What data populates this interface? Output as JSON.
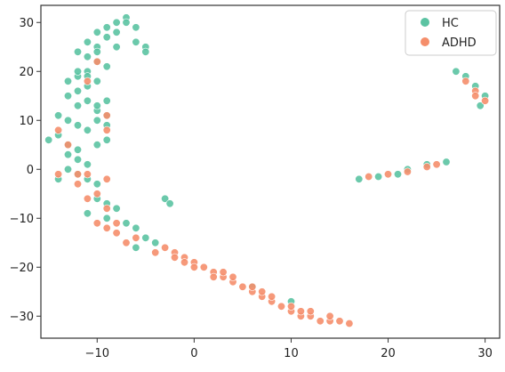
{
  "chart_data": {
    "type": "scatter",
    "x_ticks": [
      -10,
      0,
      10,
      20,
      30
    ],
    "y_ticks": [
      30,
      20,
      10,
      0,
      -10,
      -20,
      -30
    ],
    "x_tick_labels": [
      "−10",
      "0",
      "10",
      "20",
      "30"
    ],
    "y_tick_labels": [
      "30",
      "20",
      "10",
      "0",
      "−10",
      "−20",
      "−30"
    ],
    "xlim": [
      -15.8,
      31.5
    ],
    "ylim": [
      -34.5,
      33.5
    ],
    "grid": false,
    "legend": {
      "position": "top-right"
    },
    "series": [
      {
        "name": "HC",
        "color": "#5bc3a2",
        "points": [
          [
            -7,
            31
          ],
          [
            -8,
            30
          ],
          [
            -9,
            29
          ],
          [
            -10,
            28
          ],
          [
            -8,
            28
          ],
          [
            -7,
            30
          ],
          [
            -6,
            29
          ],
          [
            -9,
            27
          ],
          [
            -11,
            26
          ],
          [
            -10,
            25
          ],
          [
            -12,
            24
          ],
          [
            -11,
            23
          ],
          [
            -10,
            22
          ],
          [
            -9,
            21
          ],
          [
            -11,
            20
          ],
          [
            -12,
            19
          ],
          [
            -13,
            18
          ],
          [
            -10,
            18
          ],
          [
            -11,
            17
          ],
          [
            -12,
            16
          ],
          [
            -13,
            15
          ],
          [
            -11,
            14
          ],
          [
            -12,
            13
          ],
          [
            -10,
            12
          ],
          [
            -9,
            11
          ],
          [
            -14,
            11
          ],
          [
            -13,
            10
          ],
          [
            -12,
            9
          ],
          [
            -11,
            8
          ],
          [
            -14,
            7
          ],
          [
            -15,
            6
          ],
          [
            -13,
            5
          ],
          [
            -12,
            4
          ],
          [
            -10,
            5
          ],
          [
            -9,
            6
          ],
          [
            -13,
            3
          ],
          [
            -12,
            2
          ],
          [
            -11,
            1
          ],
          [
            -13,
            0
          ],
          [
            -12,
            -1
          ],
          [
            -11,
            -2
          ],
          [
            -10,
            -3
          ],
          [
            -14,
            -2
          ],
          [
            -10,
            -6
          ],
          [
            -9,
            -7
          ],
          [
            -8,
            -8
          ],
          [
            -11,
            -9
          ],
          [
            -9,
            -10
          ],
          [
            -7,
            -11
          ],
          [
            -6,
            -12
          ],
          [
            -5,
            -14
          ],
          [
            -4,
            -15
          ],
          [
            -6,
            -16
          ],
          [
            -5,
            25
          ],
          [
            -5,
            24
          ],
          [
            -6,
            26
          ],
          [
            -3,
            -6
          ],
          [
            -2.5,
            -7
          ],
          [
            -9,
            14
          ],
          [
            -10,
            10
          ],
          [
            -11,
            19
          ],
          [
            -10,
            24
          ],
          [
            -8,
            25
          ],
          [
            -9,
            9
          ],
          [
            -12,
            20
          ],
          [
            -10,
            13
          ],
          [
            6,
            -24
          ],
          [
            10,
            -27
          ],
          [
            17,
            -2
          ],
          [
            19,
            -1.5
          ],
          [
            21,
            -1
          ],
          [
            22,
            0
          ],
          [
            24,
            1
          ],
          [
            26,
            1.5
          ],
          [
            27,
            20
          ],
          [
            28,
            19
          ],
          [
            29,
            17
          ],
          [
            30,
            15
          ],
          [
            29.5,
            13
          ]
        ]
      },
      {
        "name": "ADHD",
        "color": "#f58e6b",
        "points": [
          [
            -10,
            22
          ],
          [
            -11,
            18
          ],
          [
            -14,
            8
          ],
          [
            -13,
            5
          ],
          [
            -9,
            11
          ],
          [
            -9,
            8
          ],
          [
            -14,
            -1
          ],
          [
            -12,
            -1
          ],
          [
            -11,
            -1
          ],
          [
            -9,
            -2
          ],
          [
            -10,
            -5
          ],
          [
            -9,
            -8
          ],
          [
            -10,
            -11
          ],
          [
            -9,
            -12
          ],
          [
            -8,
            -13
          ],
          [
            -6,
            -14
          ],
          [
            -3,
            -16
          ],
          [
            -2,
            -17
          ],
          [
            -1,
            -18
          ],
          [
            0,
            -19
          ],
          [
            1,
            -20
          ],
          [
            2,
            -21
          ],
          [
            3,
            -22
          ],
          [
            4,
            -23
          ],
          [
            5,
            -24
          ],
          [
            6,
            -25
          ],
          [
            7,
            -26
          ],
          [
            8,
            -27
          ],
          [
            9,
            -28
          ],
          [
            10,
            -29
          ],
          [
            11,
            -30
          ],
          [
            12,
            -30
          ],
          [
            13,
            -31
          ],
          [
            14,
            -31
          ],
          [
            15,
            -31
          ],
          [
            16,
            -31.5
          ],
          [
            -2,
            -18
          ],
          [
            0,
            -20
          ],
          [
            2,
            -22
          ],
          [
            4,
            -22
          ],
          [
            6,
            -24
          ],
          [
            8,
            -26
          ],
          [
            10,
            -28
          ],
          [
            12,
            -29
          ],
          [
            -4,
            -17
          ],
          [
            -7,
            -15
          ],
          [
            -8,
            -11
          ],
          [
            18,
            -1.5
          ],
          [
            20,
            -1
          ],
          [
            22,
            -0.5
          ],
          [
            24,
            0.5
          ],
          [
            25,
            1
          ],
          [
            28,
            18
          ],
          [
            29,
            16
          ],
          [
            30,
            14
          ],
          [
            29,
            15
          ],
          [
            -1,
            -19
          ],
          [
            3,
            -21
          ],
          [
            7,
            -25
          ],
          [
            11,
            -29
          ],
          [
            14,
            -30
          ],
          [
            -12,
            -3
          ],
          [
            -11,
            -6
          ]
        ]
      }
    ]
  }
}
